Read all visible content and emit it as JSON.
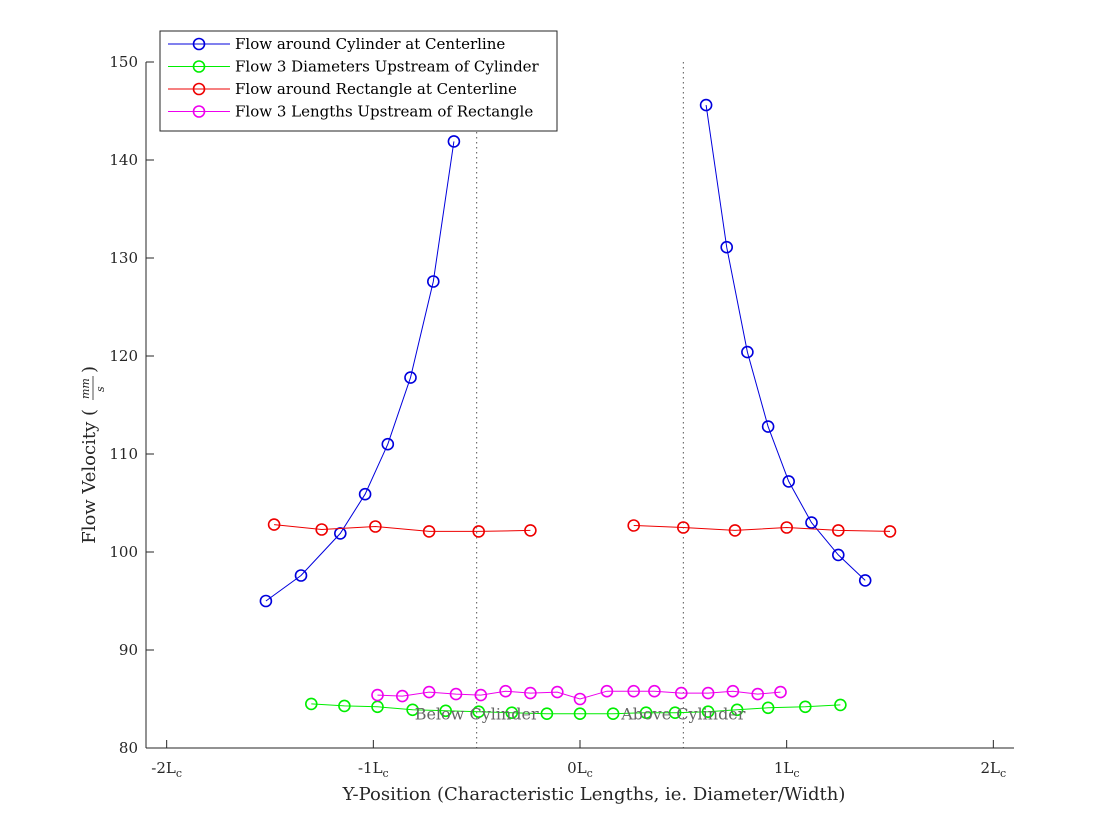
{
  "chart_data": {
    "type": "line",
    "xlabel": "Y-Position (Characteristic Lengths, ie. Diameter/Width)",
    "ylabel": "Flow Velocity (",
    "ylabel_frac": {
      "num": "mm",
      "den": "s"
    },
    "xlim": [
      -2.1,
      2.1
    ],
    "ylim": [
      80,
      150
    ],
    "x_ticks": [
      {
        "value": -2,
        "label": "-2L",
        "sub": "c"
      },
      {
        "value": -1,
        "label": "-1L",
        "sub": "c"
      },
      {
        "value": 0,
        "label": "0L",
        "sub": "c"
      },
      {
        "value": 1,
        "label": "1L",
        "sub": "c"
      },
      {
        "value": 2,
        "label": "2L",
        "sub": "c"
      }
    ],
    "y_ticks": [
      80,
      90,
      100,
      110,
      120,
      130,
      140,
      150
    ],
    "legend_position": "top-left",
    "grid": false,
    "vlines": [
      -0.5,
      0.5
    ],
    "annotations": [
      {
        "text": "Below Cylinder",
        "x": -0.5,
        "y": 83.5
      },
      {
        "text": "Above Cylinder",
        "x": 0.5,
        "y": 83.5
      }
    ],
    "series": [
      {
        "name": "Flow around Cylinder at Centerline",
        "color": "#0000dd",
        "segments": [
          [
            [
              -1.52,
              95.0
            ],
            [
              -1.35,
              97.6
            ],
            [
              -1.16,
              101.9
            ],
            [
              -1.04,
              105.9
            ],
            [
              -0.93,
              111.0
            ],
            [
              -0.82,
              117.8
            ],
            [
              -0.71,
              127.6
            ],
            [
              -0.61,
              141.9
            ]
          ],
          [
            [
              0.61,
              145.6
            ],
            [
              0.71,
              131.1
            ],
            [
              0.81,
              120.4
            ],
            [
              0.91,
              112.8
            ],
            [
              1.01,
              107.2
            ],
            [
              1.12,
              103.0
            ],
            [
              1.25,
              99.7
            ],
            [
              1.38,
              97.1
            ]
          ]
        ]
      },
      {
        "name": "Flow 3 Diameters Upstream of Cylinder",
        "color": "#00ee00",
        "segments": [
          [
            [
              -1.3,
              84.5
            ],
            [
              -1.14,
              84.3
            ],
            [
              -0.98,
              84.2
            ],
            [
              -0.81,
              83.9
            ],
            [
              -0.65,
              83.8
            ],
            [
              -0.49,
              83.7
            ],
            [
              -0.33,
              83.6
            ],
            [
              -0.16,
              83.5
            ],
            [
              0.0,
              83.5
            ],
            [
              0.16,
              83.5
            ],
            [
              0.32,
              83.6
            ],
            [
              0.46,
              83.6
            ],
            [
              0.62,
              83.7
            ],
            [
              0.76,
              83.9
            ],
            [
              0.91,
              84.1
            ],
            [
              1.09,
              84.2
            ],
            [
              1.26,
              84.4
            ]
          ]
        ]
      },
      {
        "name": "Flow around Rectangle at Centerline",
        "color": "#ee0000",
        "segments": [
          [
            [
              -1.48,
              102.8
            ],
            [
              -1.25,
              102.3
            ],
            [
              -0.99,
              102.6
            ],
            [
              -0.73,
              102.1
            ],
            [
              -0.49,
              102.1
            ],
            [
              -0.24,
              102.2
            ]
          ],
          [
            [
              0.26,
              102.7
            ],
            [
              0.5,
              102.5
            ],
            [
              0.75,
              102.2
            ],
            [
              1.0,
              102.5
            ],
            [
              1.25,
              102.2
            ],
            [
              1.5,
              102.1
            ]
          ]
        ]
      },
      {
        "name": "Flow 3 Lengths Upstream of Rectangle",
        "color": "#ee00ee",
        "segments": [
          [
            [
              -0.98,
              85.4
            ],
            [
              -0.86,
              85.3
            ],
            [
              -0.73,
              85.7
            ],
            [
              -0.6,
              85.5
            ],
            [
              -0.48,
              85.4
            ],
            [
              -0.36,
              85.8
            ],
            [
              -0.24,
              85.6
            ],
            [
              -0.11,
              85.7
            ],
            [
              0.0,
              85.0
            ],
            [
              0.13,
              85.8
            ],
            [
              0.26,
              85.8
            ],
            [
              0.36,
              85.8
            ],
            [
              0.49,
              85.6
            ],
            [
              0.62,
              85.6
            ],
            [
              0.74,
              85.8
            ],
            [
              0.86,
              85.5
            ],
            [
              0.97,
              85.7
            ]
          ]
        ]
      }
    ]
  }
}
